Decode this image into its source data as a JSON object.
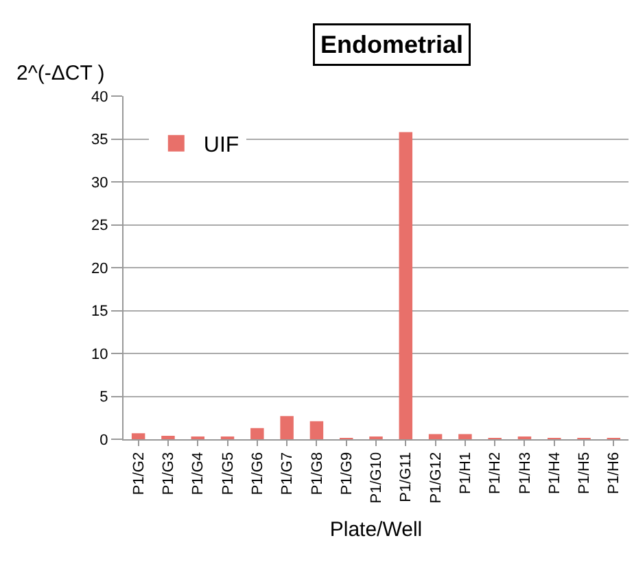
{
  "chart_data": {
    "type": "bar",
    "title": "Endometrial",
    "ylabel": "2^(-ΔCT )",
    "xlabel": "Plate/Well",
    "categories": [
      "P1/G2",
      "P1/G3",
      "P1/G4",
      "P1/G5",
      "P1/G6",
      "P1/G7",
      "P1/G8",
      "P1/G9",
      "P1/G10",
      "P1/G11",
      "P1/G12",
      "P1/H1",
      "P1/H2",
      "P1/H3",
      "P1/H4",
      "P1/H5",
      "P1/H6"
    ],
    "series": [
      {
        "name": "UIF",
        "color": "#e8706a",
        "values": [
          0.7,
          0.4,
          0.3,
          0.3,
          1.3,
          2.7,
          2.1,
          0.1,
          0.3,
          35.8,
          0.6,
          0.6,
          0.1,
          0.3,
          0.1,
          0.1,
          0.1
        ]
      }
    ],
    "ylim": [
      0,
      40
    ],
    "yticks": [
      0,
      5,
      10,
      15,
      20,
      25,
      30,
      35,
      40
    ],
    "grid": "y",
    "legend": "top left"
  }
}
